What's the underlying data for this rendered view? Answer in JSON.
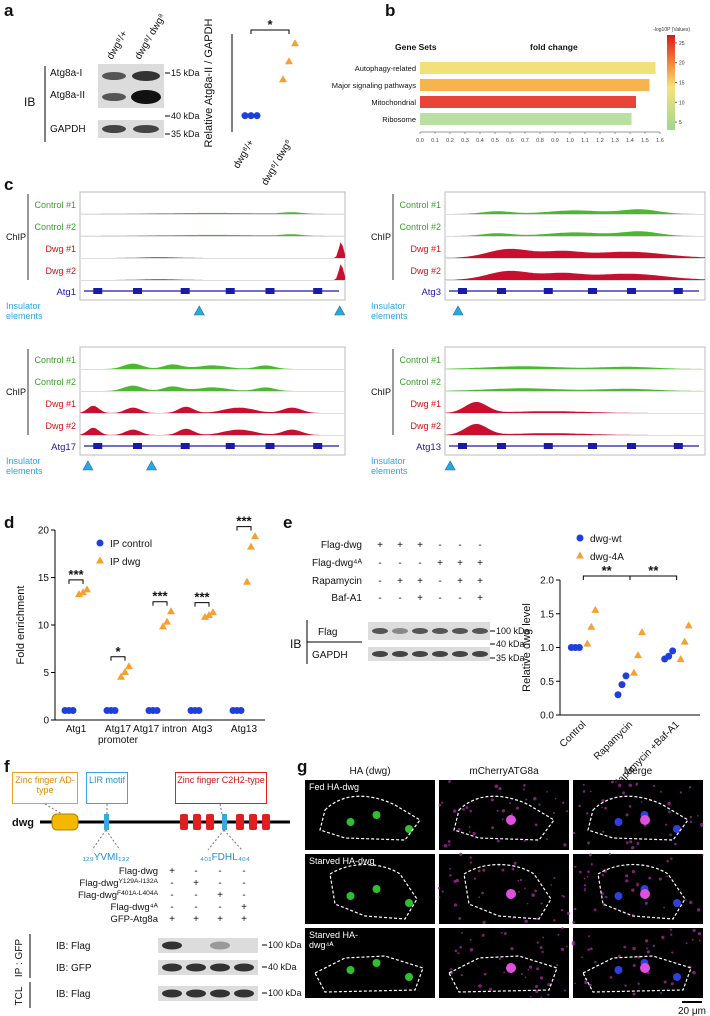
{
  "panel_labels": [
    "a",
    "b",
    "c",
    "d",
    "e",
    "f",
    "g"
  ],
  "blot_a": {
    "lanes": [
      "dwg⁸/+",
      "dwg⁸/ dwg⁸"
    ],
    "ib": "IB",
    "bands": [
      "Atg8a-I",
      "Atg8a-II",
      "GAPDH"
    ],
    "markers": [
      "15 kDa",
      "40 kDa",
      "35 kDa"
    ]
  },
  "chart_data": [
    {
      "type": "dot",
      "ylabel": "Relative Atg8a-II / GAPDH",
      "categories": [
        "dwg⁸/+",
        "dwg⁸/ dwg⁸"
      ],
      "values": [
        [
          1,
          1,
          1
        ],
        [
          3.2,
          4.3,
          5.4
        ]
      ],
      "colors": [
        "#1f3fdd",
        "#f5a030"
      ],
      "markers": [
        "circle",
        "triangle"
      ],
      "ylim": [
        0,
        6
      ],
      "annotations": [
        "*"
      ]
    },
    {
      "type": "hbar",
      "category_header": "Gene Sets",
      "value_header": "fold change",
      "categories": [
        "Autophagy-related",
        "Major signaling pathways",
        "Mitochondrial",
        "Ribosome"
      ],
      "values": [
        1.57,
        1.53,
        1.44,
        1.41
      ],
      "colors": [
        "#f2e17a",
        "#f7b44c",
        "#e8453a",
        "#b9e0a0"
      ],
      "xlim": [
        0,
        1.6
      ],
      "xticks": [
        {
          "value": 0,
          "label": "0.0"
        },
        0.1,
        0.2,
        0.3,
        0.4,
        0.5,
        0.6,
        0.7,
        0.8,
        0.9,
        {
          "value": 1,
          "label": "1.0"
        },
        1.1,
        1.2,
        1.3,
        1.4,
        1.5,
        1.6
      ],
      "colorbar": {
        "title": "-log10P (Values)",
        "lim": [
          3,
          27
        ],
        "ticks": [
          25,
          20,
          15,
          10,
          5
        ]
      }
    },
    {
      "type": "dot",
      "ylabel": "Fold enrichment",
      "categories": [
        "Atg1",
        "Atg17 promoter",
        "Atg17 intron",
        "Atg3",
        "Atg13"
      ],
      "series": [
        {
          "name": "IP control",
          "color": "#1f3fdd",
          "marker": "circle",
          "values": [
            [
              1,
              1,
              1
            ],
            [
              1,
              1,
              1
            ],
            [
              1,
              1,
              1
            ],
            [
              1,
              1,
              1
            ],
            [
              1,
              1,
              1
            ]
          ]
        },
        {
          "name": "IP dwg",
          "color": "#f5a030",
          "marker": "triangle",
          "values": [
            [
              13.2,
              13.4,
              13.7
            ],
            [
              4.5,
              5,
              5.6
            ],
            [
              9.8,
              10.3,
              11.4
            ],
            [
              10.8,
              11,
              11.3
            ],
            [
              14.5,
              18.2,
              19.3
            ]
          ]
        }
      ],
      "ylim": [
        0,
        20
      ],
      "yticks": [
        0,
        5,
        10,
        15,
        20
      ],
      "annotations": [
        "***",
        "*",
        "***",
        "***",
        "***"
      ]
    },
    {
      "type": "dot",
      "ylabel": "Relative dwg level",
      "categories": [
        "Control",
        "Rapamycin",
        "Rapamycin +Baf-A1"
      ],
      "series": [
        {
          "name": "dwg-wt",
          "color": "#1f3fdd",
          "marker": "circle",
          "values": [
            [
              1,
              1,
              1
            ],
            [
              0.3,
              0.45,
              0.58
            ],
            [
              0.83,
              0.87,
              0.95
            ]
          ]
        },
        {
          "name": "dwg-4A",
          "color": "#f5a030",
          "marker": "triangle",
          "values": [
            [
              1.05,
              1.3,
              1.55
            ],
            [
              0.62,
              0.88,
              1.22
            ],
            [
              0.82,
              1.08,
              1.32
            ]
          ]
        }
      ],
      "ylim": [
        0,
        2
      ],
      "yticks": [
        {
          "value": 0,
          "label": "0.0"
        },
        0.5,
        {
          "value": 1,
          "label": "1.0"
        },
        1.5,
        {
          "value": 2,
          "label": "2.0"
        }
      ],
      "annotations": [
        "**",
        "**"
      ]
    }
  ],
  "tracks_c": [
    {
      "chip": "ChIP",
      "samples": [
        "Control #1",
        "Control #2",
        "Dwg #1",
        "Dwg #2"
      ],
      "gene": "Atg1",
      "insulator": "Insulator elements"
    },
    {
      "chip": "ChIP",
      "samples": [
        "Control #1",
        "Control #2",
        "Dwg #1",
        "Dwg #2"
      ],
      "gene": "Atg3",
      "insulator": "Insulator elements"
    },
    {
      "chip": "ChIP",
      "samples": [
        "Control #1",
        "Control #2",
        "Dwg #1",
        "Dwg #2"
      ],
      "gene": "Atg17",
      "insulator": "Insulator elements"
    },
    {
      "chip": "ChIP",
      "samples": [
        "Control #1",
        "Control #2",
        "Dwg #1",
        "Dwg #2"
      ],
      "gene": "Atg13",
      "insulator": "Insulator elements"
    }
  ],
  "blot_e": {
    "rows": [
      {
        "label": "Flag-dwg",
        "signs": [
          "+",
          "+",
          "+",
          "-",
          "-",
          "-"
        ]
      },
      {
        "label": "Flag-dwg⁴ᴬ",
        "signs": [
          "-",
          "-",
          "-",
          "+",
          "+",
          "+"
        ]
      },
      {
        "label": "Rapamycin",
        "signs": [
          "-",
          "+",
          "+",
          "-",
          "+",
          "+"
        ]
      },
      {
        "label": "Baf-A1",
        "signs": [
          "-",
          "-",
          "+",
          "-",
          "-",
          "+"
        ]
      }
    ],
    "ib": "IB",
    "bands": [
      "Flag",
      "GAPDH"
    ],
    "markers": [
      "100 kDa",
      "40 kDa",
      "35 kDa"
    ]
  },
  "panel_f": {
    "domains": [
      "Zinc finger AD-type",
      "LIR motif",
      "Zinc finger C2H2-type"
    ],
    "protein": "dwg",
    "motifs": [
      "₁₂₉YVMI₁₃₂",
      "₄₀₁FDHL₄₀₄"
    ],
    "rows": [
      {
        "label": "Flag-dwg",
        "signs": [
          "+",
          "-",
          "-",
          "-"
        ]
      },
      {
        "label": {
          "text": "Flag-dwg",
          "sup": "Y129A-I132A"
        },
        "signs": [
          "-",
          "+",
          "-",
          "-"
        ]
      },
      {
        "label": {
          "text": "Flag-dwg",
          "sup": "F401A-L404A"
        },
        "signs": [
          "-",
          "-",
          "+",
          "-"
        ]
      },
      {
        "label": "Flag-dwg⁴ᴬ",
        "signs": [
          "-",
          "-",
          "-",
          "+"
        ]
      },
      {
        "label": "GFP-Atg8a",
        "signs": [
          "+",
          "+",
          "+",
          "+"
        ]
      }
    ],
    "ip": "IP : GFP",
    "tcl": "TCL",
    "blots": [
      "IB: Flag",
      "IB: GFP",
      "IB: Flag"
    ],
    "markers": [
      "100 kDa",
      "40 kDa",
      "100 kDa"
    ]
  },
  "panel_g": {
    "columns": [
      "HA (dwg)",
      "mCherryATG8a",
      "Merge"
    ],
    "rows": [
      "Fed HA-dwg",
      "Starved HA-dwg",
      "Starved HA-dwg⁴ᴬ"
    ],
    "scale": "20 μm"
  }
}
